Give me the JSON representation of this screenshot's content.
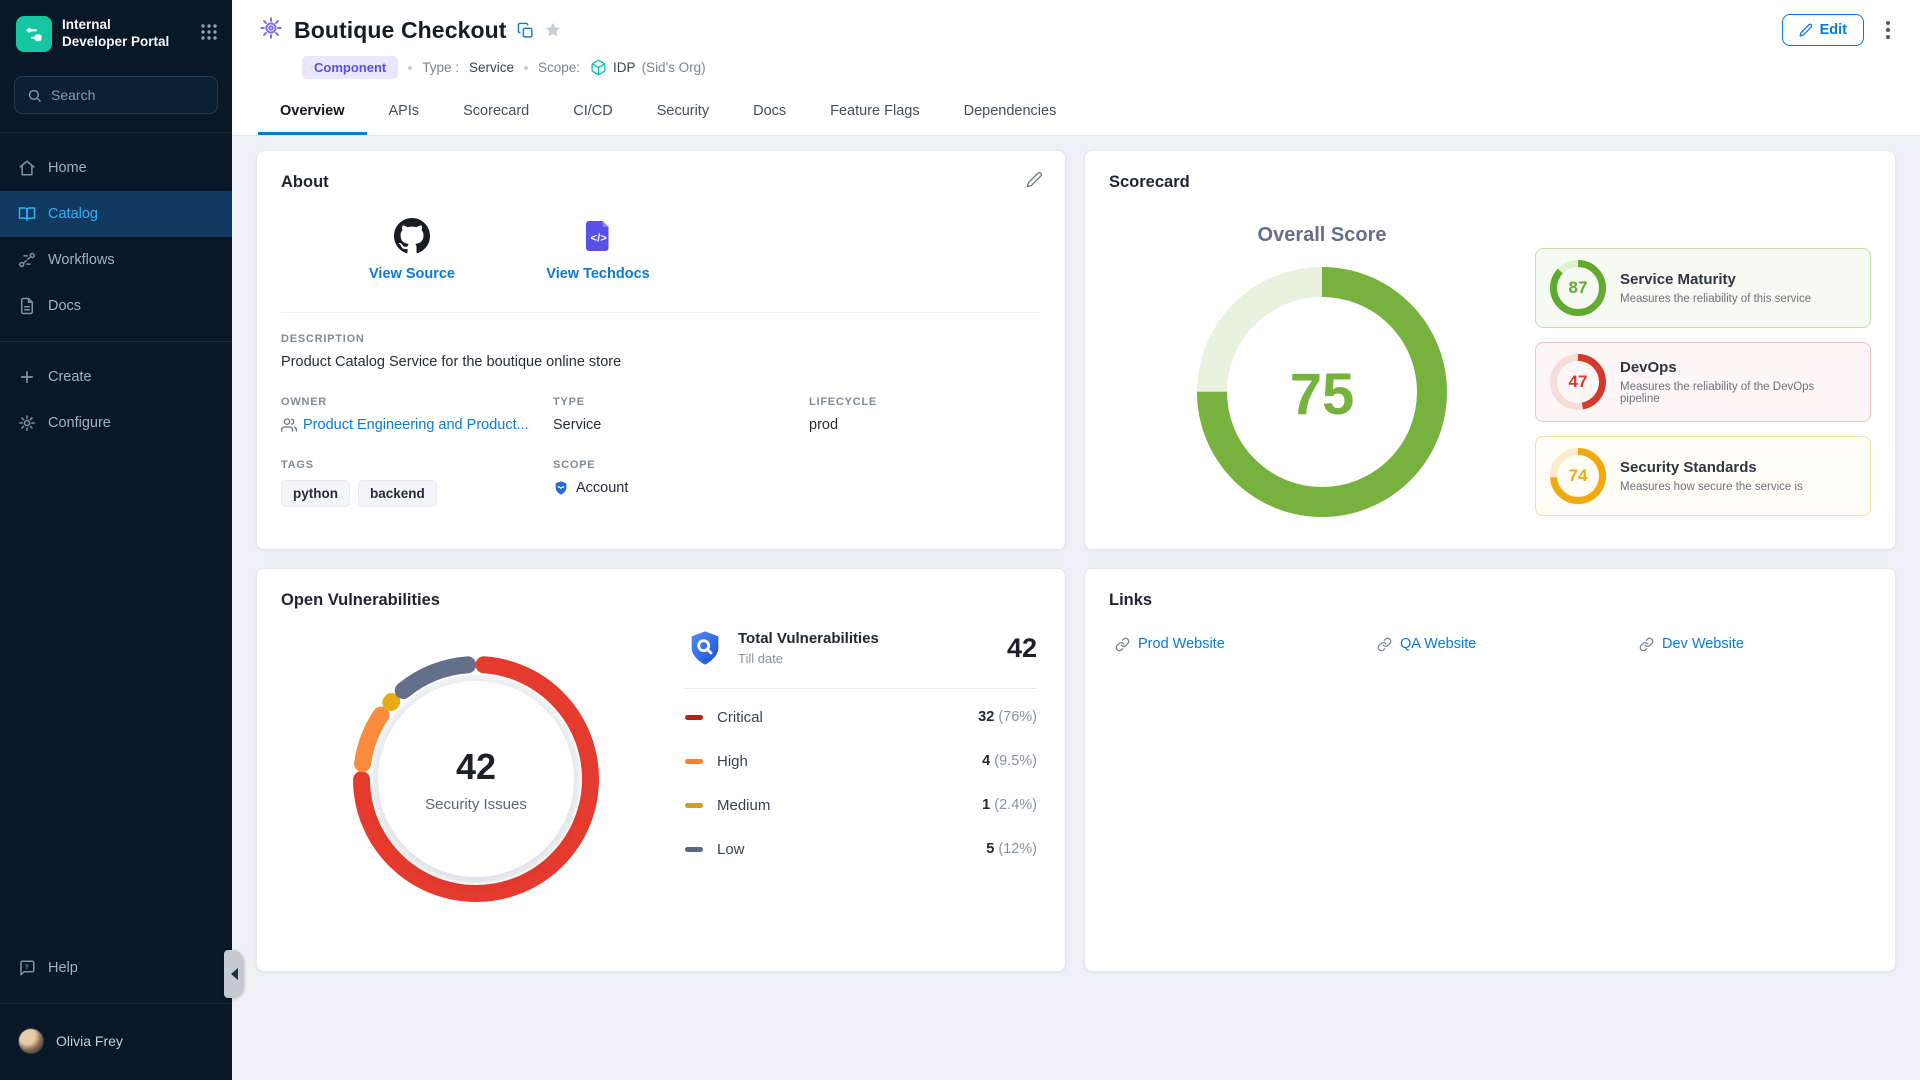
{
  "sidebar": {
    "brand": {
      "line1": "Internal",
      "line2": "Developer Portal"
    },
    "search_placeholder": "Search",
    "items": [
      {
        "label": "Home",
        "active": false
      },
      {
        "label": "Catalog",
        "active": true
      },
      {
        "label": "Workflows",
        "active": false
      },
      {
        "label": "Docs",
        "active": false
      }
    ],
    "actions": [
      {
        "label": "Create"
      },
      {
        "label": "Configure"
      }
    ],
    "help_label": "Help",
    "user_name": "Olivia Frey"
  },
  "header": {
    "title": "Boutique Checkout",
    "badge": "Component",
    "type_label": "Type :",
    "type_value": "Service",
    "scope_label": "Scope:",
    "scope_value": "IDP",
    "scope_org": "(Sid's Org)",
    "edit_label": "Edit",
    "tabs": [
      "Overview",
      "APIs",
      "Scorecard",
      "CI/CD",
      "Security",
      "Docs",
      "Feature Flags",
      "Dependencies"
    ],
    "active_tab": "Overview"
  },
  "about": {
    "title": "About",
    "quick_links": [
      {
        "label": "View Source"
      },
      {
        "label": "View Techdocs"
      }
    ],
    "description_label": "DESCRIPTION",
    "description": "Product Catalog Service for the boutique online store",
    "owner_label": "OWNER",
    "owner": "Product Engineering and Product...",
    "type_label": "TYPE",
    "type": "Service",
    "lifecycle_label": "LIFECYCLE",
    "lifecycle": "prod",
    "tags_label": "TAGS",
    "tags": [
      "python",
      "backend"
    ],
    "scope_label": "SCOPE",
    "scope": "Account"
  },
  "scorecard": {
    "title": "Scorecard",
    "overall_label": "Overall Score",
    "overall": {
      "value": 75,
      "color": "#77b23f",
      "track": "#e9f1df"
    },
    "items": [
      {
        "score": 87,
        "title": "Service Maturity",
        "desc": "Measures the reliability of this service",
        "color": "#63aa31",
        "track": "#e2eed6",
        "border": "#c6dda3",
        "bg": "#f7faf2"
      },
      {
        "score": 47,
        "title": "DevOps",
        "desc": "Measures the reliability of the DevOps pipeline",
        "color": "#d5392d",
        "track": "#f7dcda",
        "border": "#efc3bf",
        "bg": "#fdf6f6"
      },
      {
        "score": 74,
        "title": "Security Standards",
        "desc": "Measures how secure the service is",
        "color": "#f1a90c",
        "track": "#fbeccb",
        "border": "#f6dfa2",
        "bg": "#fffdf6"
      }
    ]
  },
  "vulnerabilities": {
    "title": "Open Vulnerabilities",
    "total": 42,
    "center_label": "Security Issues",
    "panel_title": "Total Vulnerabilities",
    "panel_sub": "Till date",
    "panel_total": 42,
    "rows": [
      {
        "label": "Critical",
        "count": 32,
        "pct": "(76%)",
        "value": 76,
        "color": "#e53a2e",
        "legend": "#bf1d10"
      },
      {
        "label": "High",
        "count": 4,
        "pct": "(9.5%)",
        "value": 9.5,
        "color": "#fb8c3f",
        "legend": "#f97e2d"
      },
      {
        "label": "Medium",
        "count": 1,
        "pct": "(2.4%)",
        "value": 2.4,
        "color": "#e7ac14",
        "legend": "#d3a00f"
      },
      {
        "label": "Low",
        "count": 5,
        "pct": "(12%)",
        "value": 12,
        "color": "#64708b",
        "legend": "#5c6880"
      }
    ]
  },
  "links": {
    "title": "Links",
    "items": [
      {
        "label": "Prod Website"
      },
      {
        "label": "QA Website"
      },
      {
        "label": "Dev Website"
      }
    ]
  }
}
